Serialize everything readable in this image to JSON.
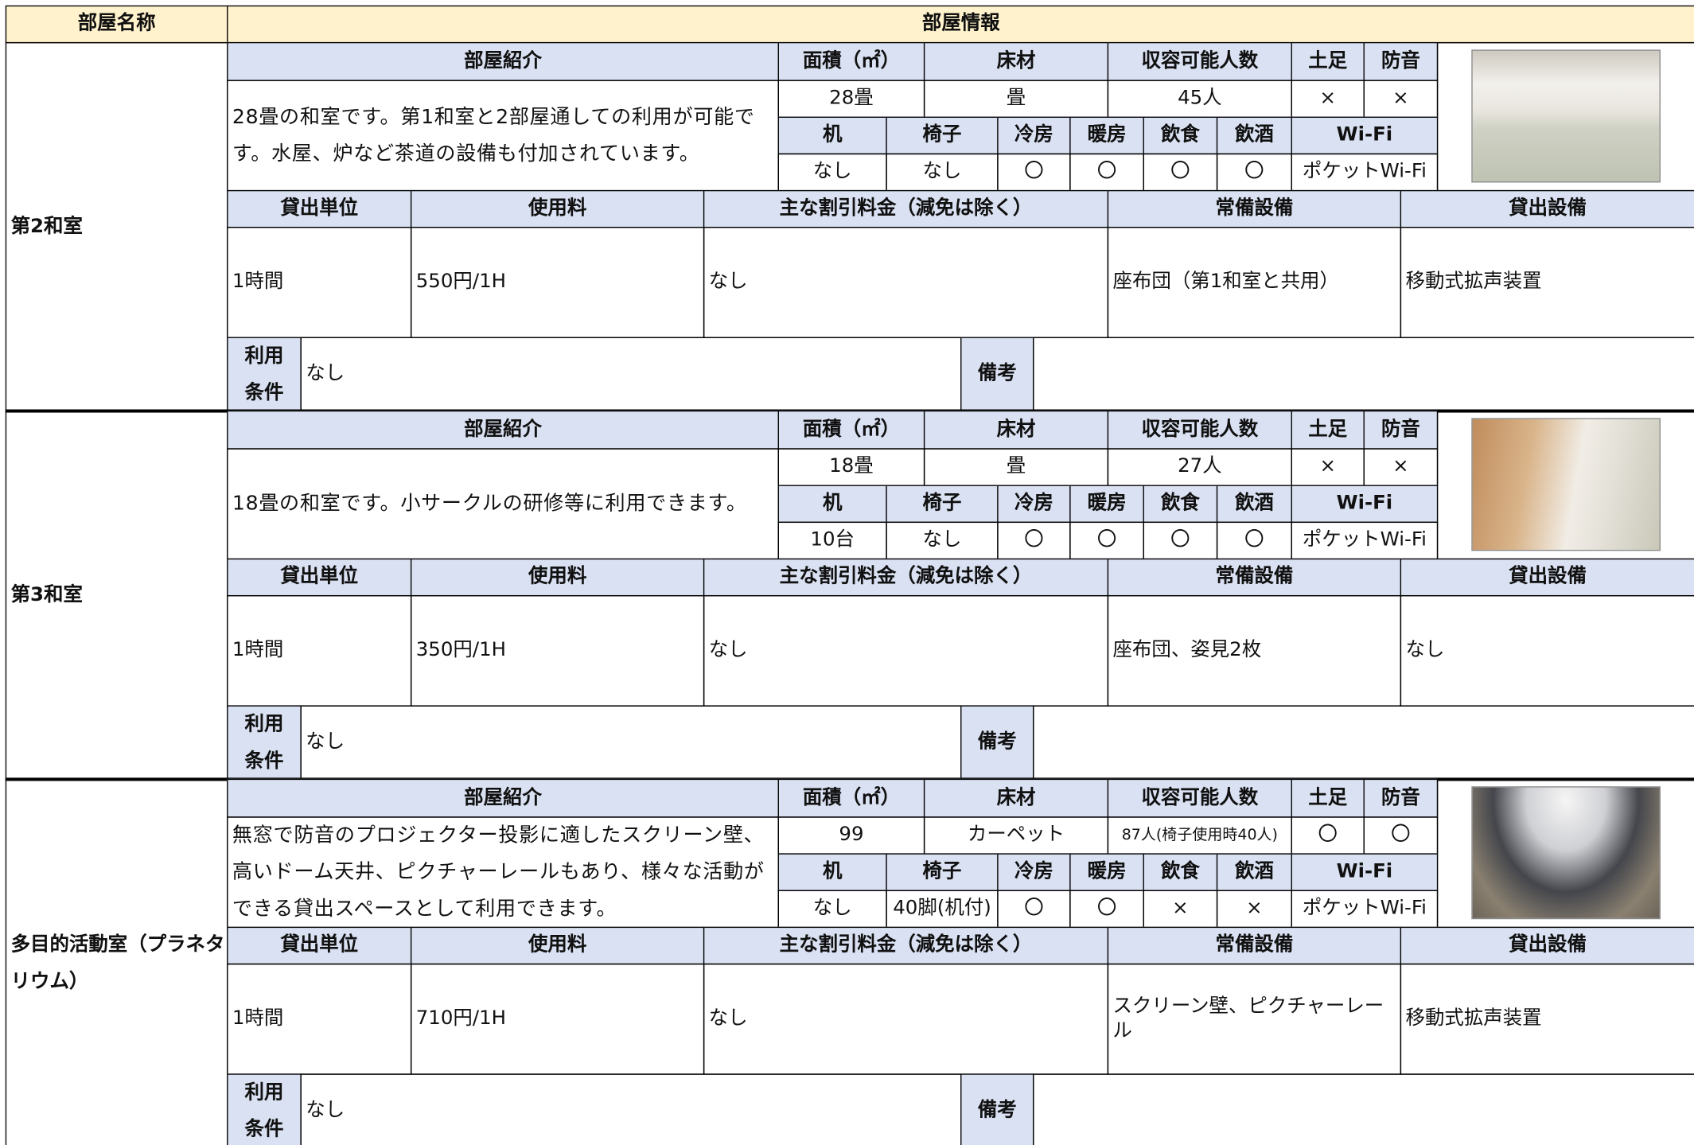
{
  "header": {
    "room_name": "部屋名称",
    "room_info": "部屋情報"
  },
  "labels": {
    "intro": "部屋紹介",
    "area": "面積（㎡）",
    "floor": "床材",
    "capacity": "収容可能人数",
    "shoes": "土足",
    "soundproof": "防音",
    "desk": "机",
    "chair": "椅子",
    "cooling": "冷房",
    "heating": "暖房",
    "food": "飲食",
    "alcohol": "飲酒",
    "wifi": "Wi-Fi",
    "unit": "貸出単位",
    "fee": "使用料",
    "discount": "主な割引料金（減免は除く）",
    "equipment": "常備設備",
    "rental": "貸出設備",
    "conditions": "利用条件",
    "remarks": "備考"
  },
  "rooms": [
    {
      "name": "第2和室",
      "intro": "28畳の和室です。第1和室と2部屋通しての利用が可能です。水屋、炉など茶道の設備も付加されています。",
      "area": "28畳",
      "floor": "畳",
      "capacity": "45人",
      "shoes": "×",
      "soundproof": "×",
      "desk": "なし",
      "chair": "なし",
      "cooling": "〇",
      "heating": "〇",
      "food": "〇",
      "alcohol": "〇",
      "wifi": "ポケットWi-Fi",
      "unit": "1時間",
      "fee": "550円/1H",
      "discount": "なし",
      "equipment": "座布団（第1和室と共用）",
      "rental": "移動式拡声装置",
      "conditions": "なし"
    },
    {
      "name": "第3和室",
      "intro": "18畳の和室です。小サークルの研修等に利用できます。",
      "area": "18畳",
      "floor": "畳",
      "capacity": "27人",
      "shoes": "×",
      "soundproof": "×",
      "desk": "10台",
      "chair": "なし",
      "cooling": "〇",
      "heating": "〇",
      "food": "〇",
      "alcohol": "〇",
      "wifi": "ポケットWi-Fi",
      "unit": "1時間",
      "fee": "350円/1H",
      "discount": "なし",
      "equipment": "座布団、姿見2枚",
      "rental": "なし",
      "conditions": "なし"
    },
    {
      "name": "多目的活動室（プラネタリウム）",
      "intro": "無窓で防音のプロジェクター投影に適したスクリーン壁、高いドーム天井、ピクチャーレールもあり、様々な活動ができる貸出スペースとして利用できます。",
      "area": "99",
      "floor": "カーペット",
      "capacity": "87人(椅子使用時40人)",
      "shoes": "〇",
      "soundproof": "〇",
      "desk": "なし",
      "chair": "40脚(机付)",
      "cooling": "〇",
      "heating": "〇",
      "food": "×",
      "alcohol": "×",
      "wifi": "ポケットWi-Fi",
      "unit": "1時間",
      "fee": "710円/1H",
      "discount": "なし",
      "equipment": "スクリーン壁、ピクチャーレール",
      "rental": "移動式拡声装置",
      "conditions": "なし"
    }
  ]
}
